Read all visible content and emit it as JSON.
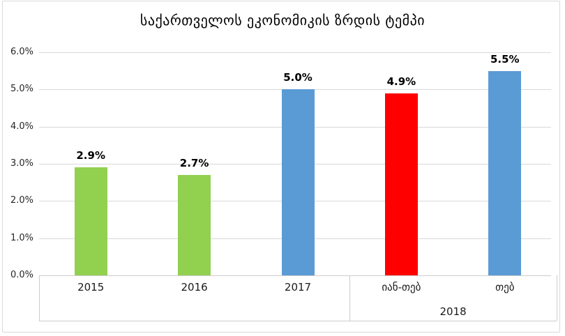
{
  "chart_data": {
    "type": "bar",
    "title": "საქართველოს ეკონომიკის ზრდის ტემპი",
    "categories": [
      "2015",
      "2016",
      "2017",
      "იან-თებ",
      "თებ"
    ],
    "values": [
      2.9,
      2.7,
      5.0,
      4.9,
      5.5
    ],
    "data_labels": [
      "2.9%",
      "2.7%",
      "5.0%",
      "4.9%",
      "5.5%"
    ],
    "bar_colors": [
      "#92d050",
      "#92d050",
      "#5b9bd5",
      "#ff0000",
      "#5b9bd5"
    ],
    "secondary_axis_group": {
      "label": "2018",
      "start_index": 3,
      "end_index": 4
    },
    "y_axis": {
      "min": 0,
      "max": 6,
      "tick_values": [
        0,
        1,
        2,
        3,
        4,
        5,
        6
      ],
      "tick_labels": [
        "0.0%",
        "1.0%",
        "2.0%",
        "3.0%",
        "4.0%",
        "5.0%",
        "6.0%"
      ]
    },
    "grid": true,
    "legend": false,
    "colors": {
      "gridline": "#d9d9d9",
      "axis_line": "#cccccc",
      "chart_border": "#d9d9d9",
      "title_text": "#000000",
      "axis_text": "#262626",
      "data_label_text": "#000000"
    }
  }
}
